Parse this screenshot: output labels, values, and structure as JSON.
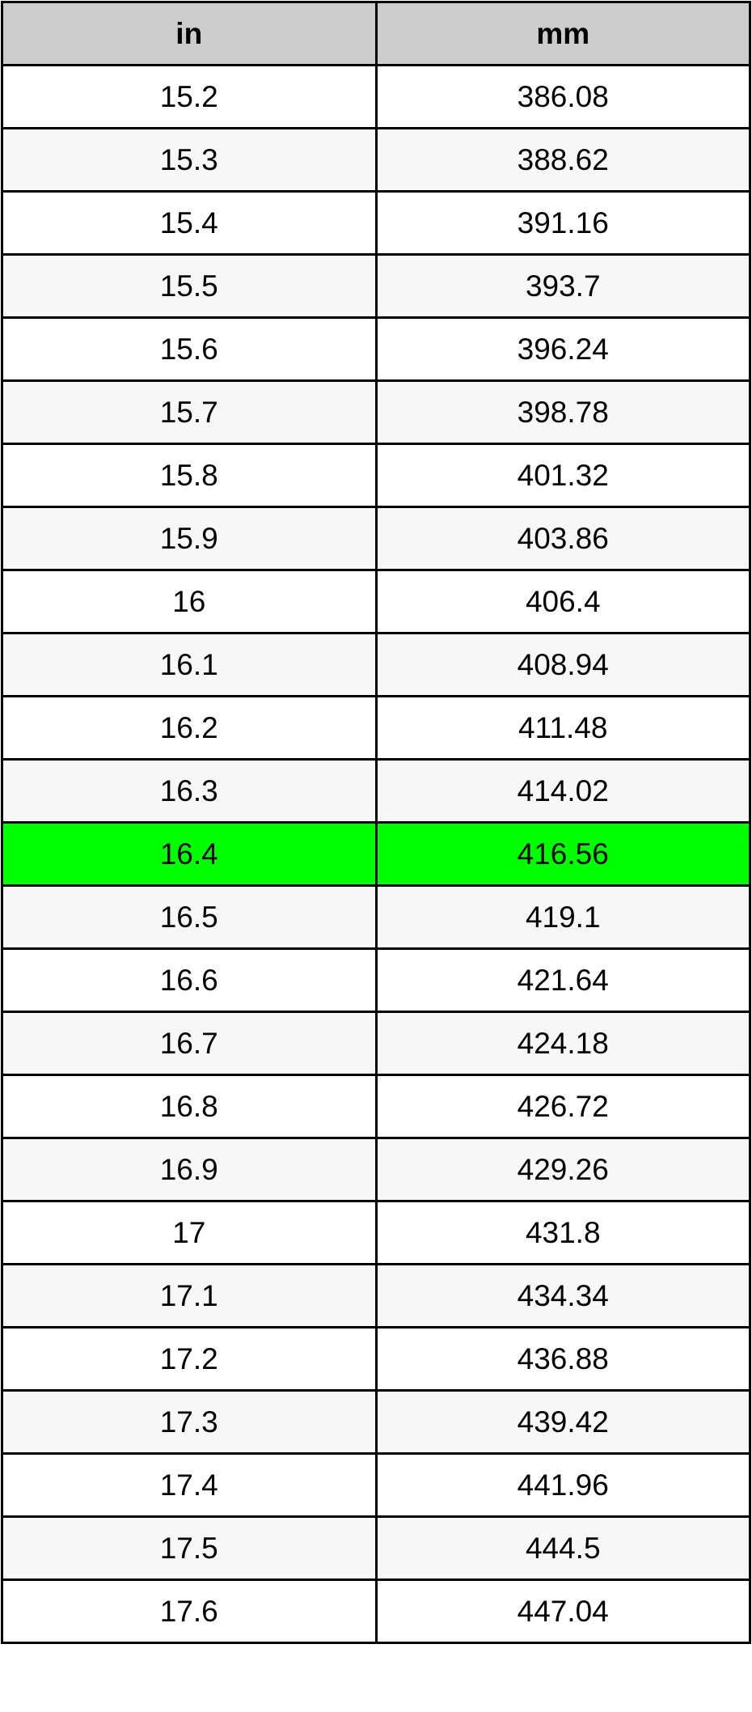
{
  "headers": [
    "in",
    "mm"
  ],
  "highlight_color": "#00ff00",
  "highlighted_row": "16.4",
  "rows": [
    [
      "15.2",
      "386.08"
    ],
    [
      "15.3",
      "388.62"
    ],
    [
      "15.4",
      "391.16"
    ],
    [
      "15.5",
      "393.7"
    ],
    [
      "15.6",
      "396.24"
    ],
    [
      "15.7",
      "398.78"
    ],
    [
      "15.8",
      "401.32"
    ],
    [
      "15.9",
      "403.86"
    ],
    [
      "16",
      "406.4"
    ],
    [
      "16.1",
      "408.94"
    ],
    [
      "16.2",
      "411.48"
    ],
    [
      "16.3",
      "414.02"
    ],
    [
      "16.4",
      "416.56"
    ],
    [
      "16.5",
      "419.1"
    ],
    [
      "16.6",
      "421.64"
    ],
    [
      "16.7",
      "424.18"
    ],
    [
      "16.8",
      "426.72"
    ],
    [
      "16.9",
      "429.26"
    ],
    [
      "17",
      "431.8"
    ],
    [
      "17.1",
      "434.34"
    ],
    [
      "17.2",
      "436.88"
    ],
    [
      "17.3",
      "439.42"
    ],
    [
      "17.4",
      "441.96"
    ],
    [
      "17.5",
      "444.5"
    ],
    [
      "17.6",
      "447.04"
    ]
  ]
}
